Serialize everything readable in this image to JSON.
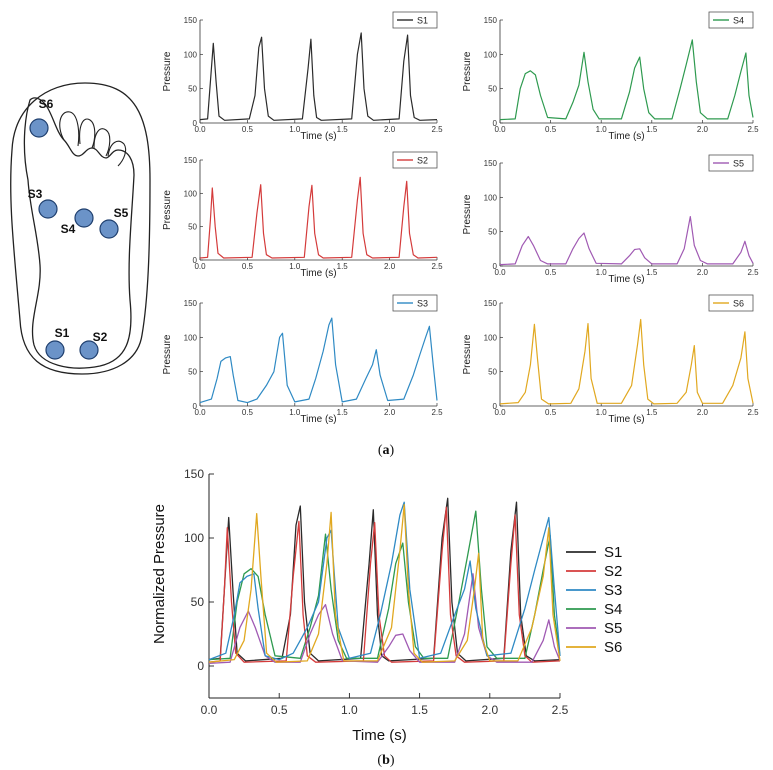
{
  "figure": {
    "caption_a": "a",
    "caption_b": "b"
  },
  "foot": {
    "sensors": [
      "S6",
      "S3",
      "S4",
      "S5",
      "S1",
      "S2"
    ],
    "sensor_color": "#6b93c8"
  },
  "chart_data": [
    {
      "type": "line",
      "name": "S1",
      "color": "#2b2b2b",
      "xlabel": "Time (s)",
      "ylabel": "Pressure",
      "xlim": [
        0,
        2.5
      ],
      "ylim": [
        0,
        150
      ],
      "xticks": [
        "0.0",
        "0.5",
        "1.0",
        "1.5",
        "2.0",
        "2.5"
      ],
      "yticks": [
        "0",
        "50",
        "100",
        "150"
      ],
      "x": [
        0,
        0.08,
        0.11,
        0.14,
        0.17,
        0.2,
        0.26,
        0.52,
        0.58,
        0.62,
        0.65,
        0.68,
        0.72,
        0.78,
        1.08,
        1.14,
        1.17,
        1.2,
        1.23,
        1.28,
        1.6,
        1.66,
        1.7,
        1.73,
        1.77,
        1.83,
        2.1,
        2.15,
        2.19,
        2.22,
        2.26,
        2.32,
        2.5
      ],
      "y": [
        5,
        6,
        60,
        116,
        60,
        10,
        4,
        6,
        40,
        110,
        125,
        50,
        10,
        4,
        6,
        80,
        122,
        40,
        8,
        4,
        6,
        100,
        131,
        50,
        10,
        4,
        6,
        90,
        128,
        40,
        8,
        4,
        5
      ]
    },
    {
      "type": "line",
      "name": "S4",
      "color": "#2e9a4f",
      "xlabel": "Time (s)",
      "ylabel": "Pressure",
      "xlim": [
        0,
        2.5
      ],
      "ylim": [
        0,
        150
      ],
      "xticks": [
        "0.0",
        "0.5",
        "1.0",
        "1.5",
        "2.0",
        "2.5"
      ],
      "yticks": [
        "0",
        "50",
        "100",
        "150"
      ],
      "x": [
        0,
        0.15,
        0.2,
        0.25,
        0.3,
        0.35,
        0.4,
        0.47,
        0.65,
        0.72,
        0.78,
        0.83,
        0.87,
        0.92,
        0.98,
        1.2,
        1.28,
        1.33,
        1.38,
        1.42,
        1.47,
        1.53,
        1.7,
        1.78,
        1.84,
        1.9,
        1.94,
        1.98,
        2.05,
        2.25,
        2.32,
        2.38,
        2.43,
        2.46,
        2.5
      ],
      "y": [
        5,
        6,
        50,
        72,
        76,
        70,
        40,
        8,
        6,
        30,
        55,
        103,
        60,
        20,
        6,
        6,
        45,
        80,
        96,
        50,
        15,
        6,
        6,
        50,
        85,
        121,
        60,
        15,
        6,
        6,
        40,
        75,
        102,
        40,
        8
      ]
    },
    {
      "type": "line",
      "name": "S2",
      "color": "#d43b3b",
      "xlabel": "Time (s)",
      "ylabel": "Pressure",
      "xlim": [
        0,
        2.5
      ],
      "ylim": [
        0,
        150
      ],
      "xticks": [
        "0.0",
        "0.5",
        "1.0",
        "1.5",
        "2.0",
        "2.5"
      ],
      "yticks": [
        "0",
        "50",
        "100",
        "150"
      ],
      "x": [
        0,
        0.08,
        0.11,
        0.13,
        0.16,
        0.19,
        0.25,
        0.55,
        0.6,
        0.64,
        0.67,
        0.7,
        0.76,
        1.1,
        1.15,
        1.18,
        1.21,
        1.25,
        1.3,
        1.6,
        1.66,
        1.69,
        1.72,
        1.76,
        1.82,
        2.1,
        2.15,
        2.18,
        2.21,
        2.25,
        2.3,
        2.5
      ],
      "y": [
        3,
        4,
        60,
        108,
        50,
        10,
        3,
        4,
        70,
        113,
        40,
        8,
        3,
        4,
        80,
        112,
        40,
        8,
        3,
        4,
        90,
        124,
        40,
        8,
        3,
        4,
        80,
        118,
        40,
        8,
        3,
        4
      ]
    },
    {
      "type": "line",
      "name": "S5",
      "color": "#a05ab3",
      "xlabel": "Time (s)",
      "ylabel": "Pressure",
      "xlim": [
        0,
        2.5
      ],
      "ylim": [
        0,
        150
      ],
      "xticks": [
        "0.0",
        "0.5",
        "1.0",
        "1.5",
        "2.0",
        "2.5"
      ],
      "yticks": [
        "0",
        "50",
        "100",
        "150"
      ],
      "x": [
        0,
        0.15,
        0.22,
        0.28,
        0.33,
        0.4,
        0.47,
        0.65,
        0.72,
        0.78,
        0.83,
        0.88,
        0.95,
        1.2,
        1.28,
        1.33,
        1.38,
        1.43,
        1.5,
        1.75,
        1.82,
        1.88,
        1.92,
        1.98,
        2.05,
        2.3,
        2.38,
        2.42,
        2.46,
        2.5
      ],
      "y": [
        2,
        3,
        30,
        43,
        30,
        8,
        3,
        3,
        25,
        40,
        48,
        25,
        4,
        3,
        15,
        24,
        25,
        12,
        3,
        3,
        25,
        72,
        30,
        8,
        3,
        3,
        20,
        36,
        15,
        4
      ]
    },
    {
      "type": "line",
      "name": "S3",
      "color": "#2f8ac4",
      "xlabel": "Time (s)",
      "ylabel": "Pressure",
      "xlim": [
        0,
        2.5
      ],
      "ylim": [
        0,
        150
      ],
      "xticks": [
        "0.0",
        "0.5",
        "1.0",
        "1.5",
        "2.0",
        "2.5"
      ],
      "yticks": [
        "0",
        "50",
        "100",
        "150"
      ],
      "x": [
        0,
        0.12,
        0.18,
        0.22,
        0.27,
        0.32,
        0.35,
        0.4,
        0.5,
        0.6,
        0.7,
        0.78,
        0.84,
        0.87,
        0.92,
        1.0,
        1.15,
        1.22,
        1.3,
        1.36,
        1.39,
        1.43,
        1.5,
        1.65,
        1.75,
        1.82,
        1.86,
        1.9,
        1.98,
        2.15,
        2.25,
        2.32,
        2.38,
        2.42,
        2.46,
        2.5
      ],
      "y": [
        5,
        10,
        40,
        65,
        70,
        72,
        45,
        8,
        5,
        10,
        30,
        50,
        100,
        106,
        30,
        6,
        10,
        40,
        80,
        118,
        128,
        60,
        6,
        10,
        40,
        60,
        82,
        45,
        8,
        10,
        45,
        75,
        100,
        116,
        60,
        8
      ]
    },
    {
      "type": "line",
      "name": "S6",
      "color": "#e1a820",
      "xlabel": "Time (s)",
      "ylabel": "Pressure",
      "xlim": [
        0,
        2.5
      ],
      "ylim": [
        0,
        150
      ],
      "xticks": [
        "0.0",
        "0.5",
        "1.0",
        "1.5",
        "2.0",
        "2.5"
      ],
      "yticks": [
        "0",
        "50",
        "100",
        "150"
      ],
      "x": [
        0,
        0.18,
        0.25,
        0.3,
        0.34,
        0.37,
        0.41,
        0.48,
        0.7,
        0.78,
        0.84,
        0.87,
        0.9,
        0.96,
        1.2,
        1.3,
        1.36,
        1.39,
        1.42,
        1.46,
        1.52,
        1.75,
        1.84,
        1.89,
        1.92,
        1.95,
        2.0,
        2.2,
        2.3,
        2.38,
        2.42,
        2.45,
        2.5
      ],
      "y": [
        3,
        5,
        20,
        60,
        119,
        70,
        10,
        3,
        4,
        25,
        80,
        120,
        40,
        4,
        4,
        30,
        90,
        126,
        60,
        10,
        3,
        4,
        20,
        60,
        88,
        20,
        4,
        4,
        30,
        70,
        108,
        40,
        4
      ]
    },
    {
      "type": "line",
      "combined": true,
      "xlabel": "Time (s)",
      "ylabel": "Normalized Pressure",
      "xlim": [
        0,
        2.5
      ],
      "ylim": [
        -25,
        150
      ],
      "xticks": [
        "0.0",
        "0.5",
        "1.0",
        "1.5",
        "2.0",
        "2.5"
      ],
      "yticks": [
        "0",
        "50",
        "100",
        "150"
      ],
      "legend": [
        "S1",
        "S2",
        "S3",
        "S4",
        "S5",
        "S6"
      ],
      "legend_position": "right"
    }
  ]
}
